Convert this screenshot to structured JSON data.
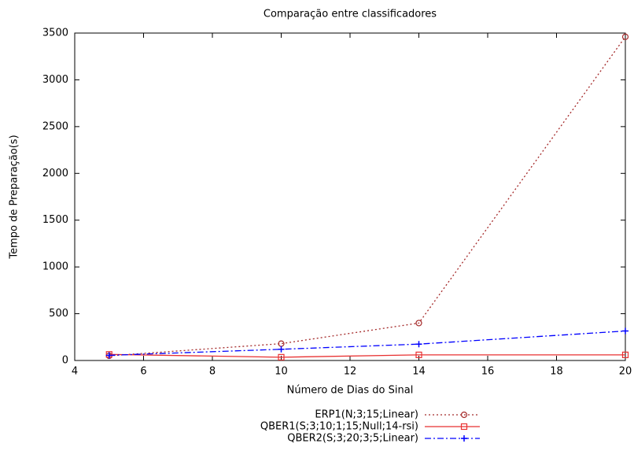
{
  "chart_data": {
    "type": "line",
    "title": "Comparação entre classificadores",
    "x_label": "Número de Dias do Sinal",
    "y_label": "Tempo de Preparação(s)",
    "x": [
      5,
      10,
      14,
      20
    ],
    "series": [
      {
        "name": "ERP1(N;3;15;Linear)",
        "color": "#a52a2a",
        "dash": "2,3",
        "marker": "circle",
        "values": [
          50,
          180,
          400,
          3460
        ]
      },
      {
        "name": "QBER1(S;3;10;1;15;Null;14-rsi)",
        "color": "#e83030",
        "dash": "",
        "marker": "square",
        "values": [
          65,
          35,
          60,
          60
        ]
      },
      {
        "name": "QBER2(S;3;20;3;5;Linear)",
        "color": "#0000ff",
        "dash": "8,3,2,3",
        "marker": "plus",
        "values": [
          55,
          120,
          175,
          315
        ]
      }
    ],
    "xlim": [
      4,
      20
    ],
    "xticks": [
      4,
      6,
      8,
      10,
      12,
      14,
      16,
      18,
      20
    ],
    "ylim": [
      0,
      3500
    ],
    "yticks": [
      0,
      500,
      1000,
      1500,
      2000,
      2500,
      3000,
      3500
    ],
    "grid": false
  }
}
